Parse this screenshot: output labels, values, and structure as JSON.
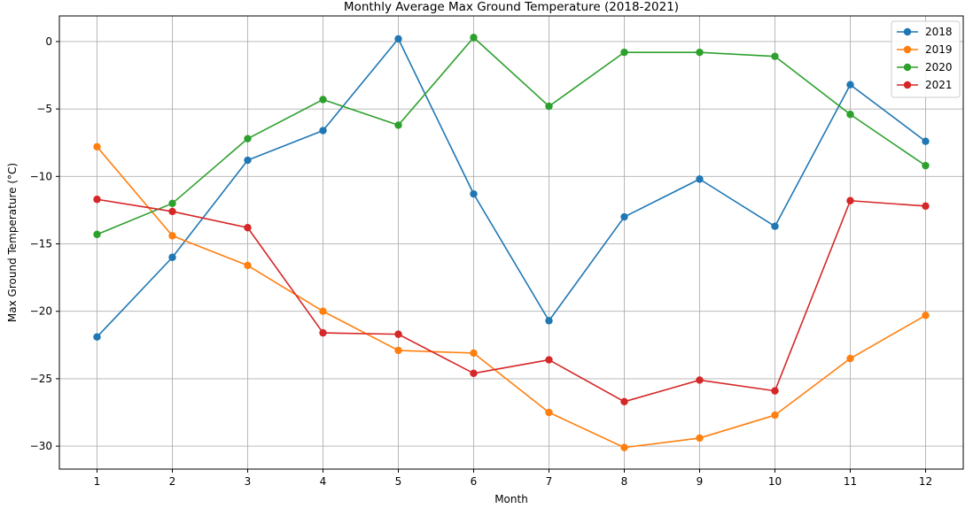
{
  "chart_data": {
    "type": "line",
    "title": "Monthly Average Max Ground Temperature (2018-2021)",
    "xlabel": "Month",
    "ylabel": "Max Ground Temperature (°C)",
    "x": [
      1,
      2,
      3,
      4,
      5,
      6,
      7,
      8,
      9,
      10,
      11,
      12
    ],
    "xlim": [
      0.5,
      12.5
    ],
    "ylim": [
      -31.7,
      1.9
    ],
    "yticks": [
      0,
      -5,
      -10,
      -15,
      -20,
      -25,
      -30
    ],
    "ytick_labels": [
      "0",
      "−5",
      "−10",
      "−15",
      "−20",
      "−25",
      "−30"
    ],
    "grid": true,
    "legend_position": "top-right",
    "series": [
      {
        "name": "2018",
        "color": "#1f77b4",
        "values": [
          -21.9,
          -16.0,
          -8.8,
          -6.6,
          0.2,
          -11.3,
          -20.7,
          -13.0,
          -10.2,
          -13.7,
          -3.2,
          -7.4
        ]
      },
      {
        "name": "2019",
        "color": "#ff7f0e",
        "values": [
          -7.8,
          -14.4,
          -16.6,
          -20.0,
          -22.9,
          -23.1,
          -27.5,
          -30.1,
          -29.4,
          -27.7,
          -23.5,
          -20.3
        ]
      },
      {
        "name": "2020",
        "color": "#2ca02c",
        "values": [
          -14.3,
          -12.0,
          -7.2,
          -4.3,
          -6.2,
          0.3,
          -4.8,
          -0.8,
          -0.8,
          -1.1,
          -5.4,
          -9.2
        ]
      },
      {
        "name": "2021",
        "color": "#d62728",
        "values": [
          -11.7,
          -12.6,
          -13.8,
          -21.6,
          -21.7,
          -24.6,
          -23.6,
          -26.7,
          -25.1,
          -25.9,
          -11.8,
          -12.2
        ]
      }
    ]
  }
}
